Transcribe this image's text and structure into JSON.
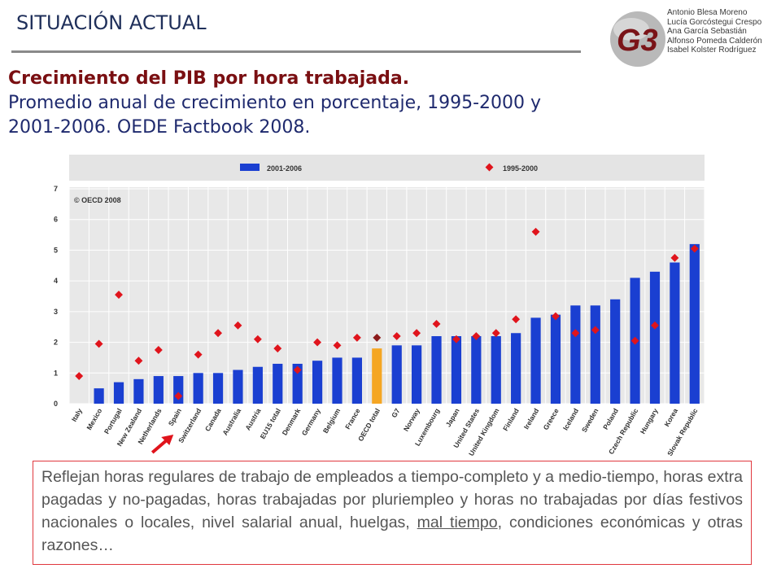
{
  "slide": {
    "section_title": "SITUACIÓN ACTUAL",
    "heading_bold": "Crecimiento del PIB por hora trabajada.",
    "heading_rest": "Promedio anual de crecimiento en porcentaje, 1995-2000 y 2001-2006. OEDE Factbook 2008.",
    "logo_text": "G3",
    "authors": [
      "Antonio Blesa Moreno",
      "Lucía Gorcóstegui Crespo",
      "Ana García Sebastián",
      "Alfonso Pomeda Calderón",
      "Isabel Kolster Rodríguez"
    ],
    "note_part1": "Reflejan horas regulares de trabajo de empleados a tiempo-completo y a medio-tiempo, horas extra pagadas y no-pagadas, horas trabajadas por pluriempleo y horas no trabajadas por días festivos nacionales o locales, nivel salarial anual, huelgas, ",
    "note_underlined": "mal tiempo",
    "note_part2": ", condiciones económicas y otras razones…"
  },
  "colors": {
    "bar_2001_2006": "#1a3fd1",
    "bar_oecd_total": "#f5a623",
    "marker_1995_2000": "#e0141c",
    "marker_oecd_total": "#8b1a1a",
    "arrow": "#e0141c"
  },
  "chart_data": {
    "type": "bar",
    "annotation": "© OECD 2008",
    "ylim": [
      0,
      7
    ],
    "yticks": [
      "0",
      "1",
      "2",
      "3",
      "4",
      "5",
      "6",
      "7"
    ],
    "legend": {
      "placement": "top"
    },
    "categories": [
      "Italy",
      "Mexico",
      "Portugal",
      "New Zealand",
      "Netherlands",
      "Spain",
      "Switzerland",
      "Canada",
      "Australia",
      "Austria",
      "EU15 total",
      "Denmark",
      "Germany",
      "Belgium",
      "France",
      "OECD total",
      "G7",
      "Norway",
      "Luxembourg",
      "Japan",
      "United States",
      "United Kingdom",
      "Finland",
      "Ireland",
      "Greece",
      "Iceland",
      "Sweden",
      "Poland",
      "Czech Republic",
      "Hungary",
      "Korea",
      "Slovak Republic"
    ],
    "highlight_category": "OECD total",
    "arrow_category": "Spain",
    "series": [
      {
        "name": "2001-2006",
        "kind": "bar",
        "values": [
          0.0,
          0.5,
          0.7,
          0.8,
          0.9,
          0.9,
          1.0,
          1.0,
          1.1,
          1.2,
          1.3,
          1.3,
          1.4,
          1.5,
          1.5,
          1.8,
          1.9,
          1.9,
          2.2,
          2.2,
          2.2,
          2.2,
          2.3,
          2.8,
          2.9,
          3.2,
          3.2,
          3.4,
          4.1,
          4.3,
          4.6,
          5.2
        ]
      },
      {
        "name": "1995-2000",
        "kind": "marker",
        "values": [
          0.9,
          1.95,
          3.55,
          1.4,
          1.75,
          0.25,
          1.6,
          2.3,
          2.55,
          2.1,
          1.8,
          1.1,
          2.0,
          1.9,
          2.15,
          2.15,
          2.2,
          2.3,
          2.6,
          2.1,
          2.2,
          2.3,
          2.75,
          5.6,
          2.85,
          2.3,
          2.4,
          null,
          2.05,
          2.55,
          4.75,
          5.05
        ]
      }
    ]
  }
}
